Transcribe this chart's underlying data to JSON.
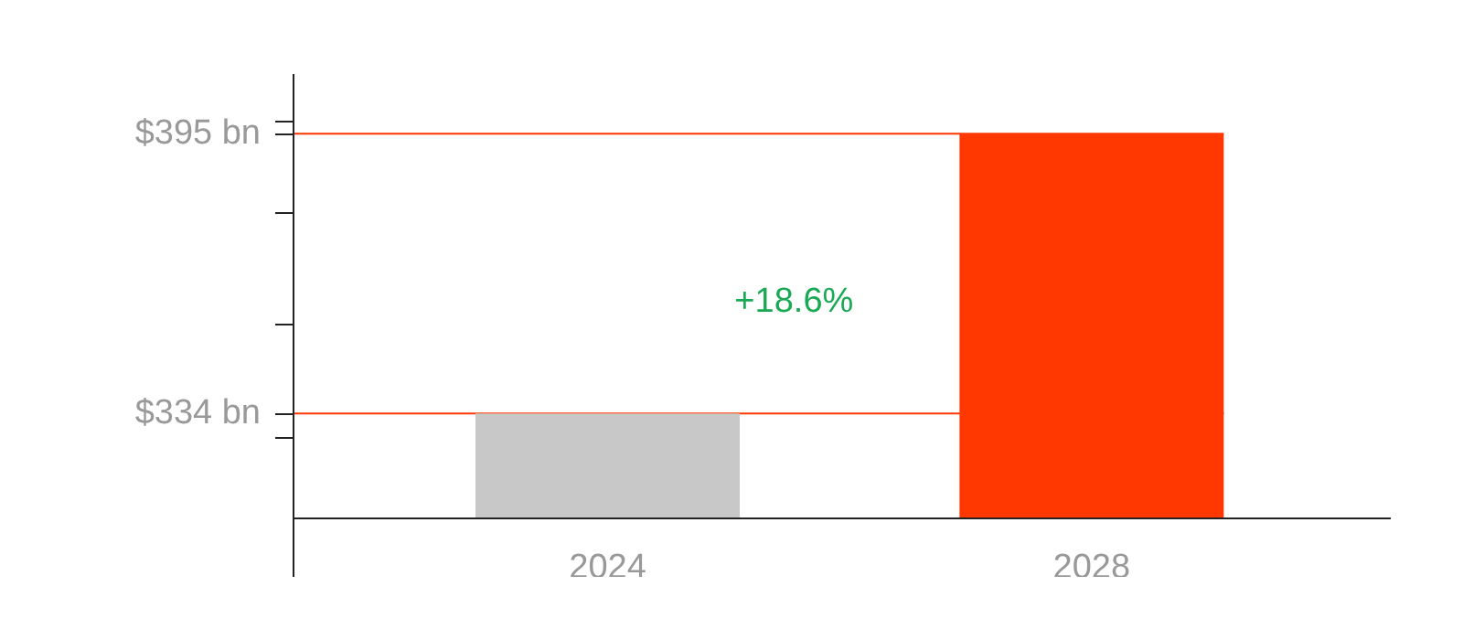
{
  "chart_data": {
    "type": "bar",
    "categories": [
      "2024",
      "2028"
    ],
    "values": [
      334,
      395
    ],
    "colors": [
      "#c8c8c8",
      "#ff3700"
    ],
    "ylim": [
      311,
      408
    ],
    "yticks": [
      {
        "value": 395,
        "label": "$395 bn"
      },
      {
        "value": 334,
        "label": "$334 bn"
      },
      {
        "value": 397.6,
        "label": null
      },
      {
        "value": 377.6,
        "label": null
      },
      {
        "value": 353.2,
        "label": null
      },
      {
        "value": 328.8,
        "label": null
      }
    ],
    "ref_lines": [
      {
        "axis": "y",
        "value": 395,
        "label": null,
        "color": "#ff3700"
      },
      {
        "axis": "y",
        "value": 334,
        "label": null,
        "color": "#ff3700"
      }
    ],
    "annotations": [
      "+18.6%"
    ],
    "grid": false
  }
}
